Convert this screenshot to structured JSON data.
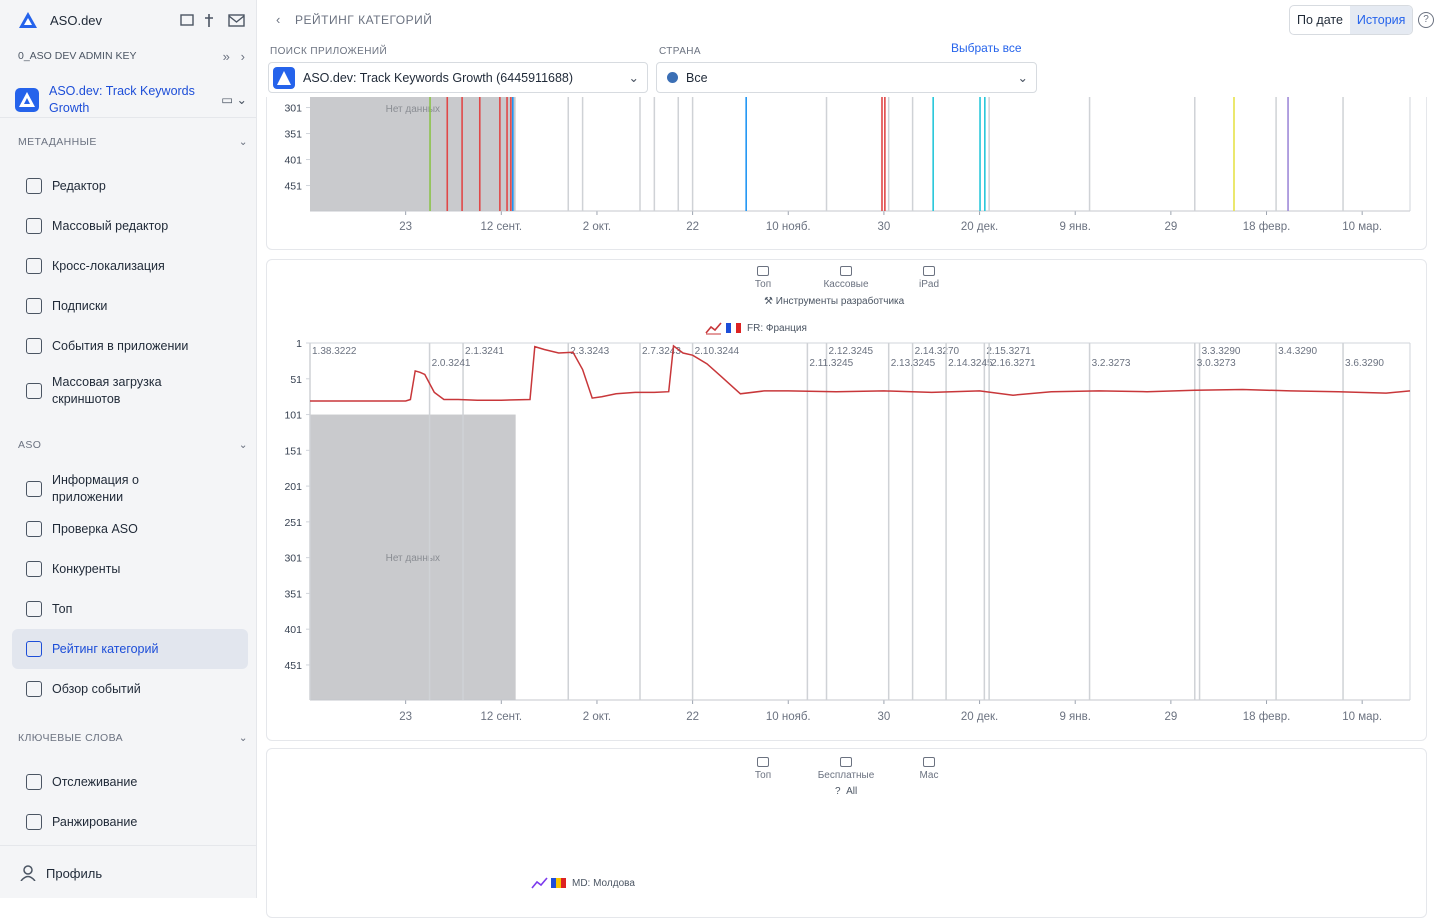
{
  "sidebar": {
    "brand": "ASO.dev",
    "api_key": "0_ASO DEV ADMIN KEY",
    "app_name": "ASO.dev: Track Keywords Growth",
    "sections": [
      {
        "title": "МЕТАДАННЫЕ",
        "items": [
          {
            "label": "Редактор"
          },
          {
            "label": "Массовый редактор"
          },
          {
            "label": "Кросс-локализация"
          },
          {
            "label": "Подписки"
          },
          {
            "label": "События в приложении"
          },
          {
            "label": "Массовая загрузка скриншотов"
          }
        ]
      },
      {
        "title": "ASO",
        "items": [
          {
            "label": "Информация о приложении"
          },
          {
            "label": "Проверка ASO"
          },
          {
            "label": "Конкуренты"
          },
          {
            "label": "Топ"
          },
          {
            "label": "Рейтинг категорий",
            "selected": true
          },
          {
            "label": "Обзор событий"
          }
        ]
      },
      {
        "title": "КЛЮЧЕВЫЕ СЛОВА",
        "items": [
          {
            "label": "Отслеживание"
          },
          {
            "label": "Ранжирование"
          }
        ]
      }
    ],
    "profile": "Профиль"
  },
  "header": {
    "title": "РЕЙТИНГ КАТЕГОРИЙ",
    "toggle": [
      {
        "label": "По дате"
      },
      {
        "label": "История",
        "selected": true
      }
    ]
  },
  "filters": {
    "app_label": "ПОИСК ПРИЛОЖЕНИЙ",
    "app_value": "ASO.dev: Track Keywords Growth (6445911688)",
    "country_label": "СТРАНА",
    "select_all": "Выбрать все",
    "country_value": "Все"
  },
  "panels": [
    {
      "tabs": [
        "Топ",
        "Кассовые",
        "iPad"
      ],
      "subtitle": "Инструменты разработчика"
    },
    {
      "tabs": [
        "Топ",
        "Бесплатные",
        "Mac"
      ],
      "subtitle": "All",
      "legend": "MD: Молдова"
    }
  ],
  "chart_data": [
    {
      "type": "events",
      "no_data": {
        "label": "Нет данных",
        "x": [
          0,
          43
        ]
      },
      "xlim": [
        0,
        230
      ],
      "ylim": [
        500,
        1
      ],
      "xticks": [
        {
          "value": 20,
          "label": "23"
        },
        {
          "value": 40,
          "label": "12 сент."
        },
        {
          "value": 60,
          "label": "2 окт."
        },
        {
          "value": 80,
          "label": "22"
        },
        {
          "value": 100,
          "label": "10 нояб."
        },
        {
          "value": 120,
          "label": "30"
        },
        {
          "value": 140,
          "label": "20 дек."
        },
        {
          "value": 160,
          "label": "9 янв."
        },
        {
          "value": 180,
          "label": "29"
        },
        {
          "value": 200,
          "label": "18 февр."
        },
        {
          "value": 220,
          "label": "10 мар."
        }
      ],
      "yticks": [
        301,
        351,
        401,
        451
      ],
      "release_x": [
        54,
        57,
        69,
        72,
        77,
        80,
        108,
        121,
        126,
        142,
        163,
        185,
        202,
        216
      ],
      "events": [
        {
          "x": 25.1,
          "color": "#8bc34a"
        },
        {
          "x": 28.7,
          "color": "#e04848"
        },
        {
          "x": 31.8,
          "color": "#e04848"
        },
        {
          "x": 35.5,
          "color": "#e04848"
        },
        {
          "x": 39.7,
          "color": "#e04848"
        },
        {
          "x": 41.2,
          "color": "#e04848"
        },
        {
          "x": 42,
          "color": "#e04848"
        },
        {
          "x": 42.4,
          "color": "#2196f3"
        },
        {
          "x": 91.2,
          "color": "#2196f3"
        },
        {
          "x": 119.6,
          "color": "#e04848"
        },
        {
          "x": 120.2,
          "color": "#e04848"
        },
        {
          "x": 130.3,
          "color": "#26c6da"
        },
        {
          "x": 140.1,
          "color": "#26c6da"
        },
        {
          "x": 141.1,
          "color": "#26c6da"
        },
        {
          "x": 193.2,
          "color": "#e6e24a"
        },
        {
          "x": 204.5,
          "color": "#9e8ad8"
        }
      ]
    },
    {
      "type": "line",
      "no_data": {
        "label": "Нет данных",
        "x": [
          0,
          43
        ]
      },
      "xlim": [
        0,
        230
      ],
      "ylim": [
        500,
        1
      ],
      "xticks": [
        {
          "value": 20,
          "label": "23"
        },
        {
          "value": 40,
          "label": "12 сент."
        },
        {
          "value": 60,
          "label": "2 окт."
        },
        {
          "value": 80,
          "label": "22"
        },
        {
          "value": 100,
          "label": "10 нояб."
        },
        {
          "value": 120,
          "label": "30"
        },
        {
          "value": 140,
          "label": "20 дек."
        },
        {
          "value": 160,
          "label": "9 янв."
        },
        {
          "value": 180,
          "label": "29"
        },
        {
          "value": 200,
          "label": "18 февр."
        },
        {
          "value": 220,
          "label": "10 мар."
        }
      ],
      "yticks": [
        1,
        51,
        101,
        151,
        201,
        251,
        301,
        351,
        401,
        451
      ],
      "x": [
        0,
        20,
        21,
        22,
        23,
        24,
        26,
        28,
        31,
        35,
        40,
        46,
        47,
        49,
        52,
        55,
        57,
        59,
        61,
        64,
        68,
        72,
        75,
        76,
        78,
        80,
        83,
        86,
        90,
        95,
        100,
        110,
        120,
        130,
        140,
        147,
        155,
        165,
        175,
        185,
        195,
        205,
        215,
        225,
        230
      ],
      "series": [
        {
          "name": "FR: Франция",
          "color": "#c8373a",
          "values": [
            82,
            82,
            80,
            40,
            42,
            45,
            70,
            80,
            80,
            81,
            81,
            80,
            6,
            10,
            15,
            14,
            38,
            78,
            76,
            72,
            70,
            70,
            69,
            5,
            15,
            18,
            30,
            48,
            72,
            68,
            68,
            69,
            68,
            70,
            68,
            74,
            69,
            68,
            69,
            67,
            66,
            68,
            69,
            71,
            68
          ]
        }
      ],
      "annotations_top": [
        {
          "x": 0,
          "label": "1.38.3222"
        },
        {
          "x": 32,
          "label": "2.1.3241"
        },
        {
          "x": 54,
          "label": "2.3.3243"
        },
        {
          "x": 69,
          "label": "2.7.3243"
        },
        {
          "x": 80,
          "label": "2.10.3244"
        },
        {
          "x": 108,
          "label": "2.12.3245"
        },
        {
          "x": 126,
          "label": "2.14.3270"
        },
        {
          "x": 141,
          "label": "2.15.3271"
        },
        {
          "x": 186,
          "label": "3.3.3290"
        },
        {
          "x": 202,
          "label": "3.4.3290"
        }
      ],
      "annotations_bottom": [
        {
          "x": 25,
          "label": "2.0.3241"
        },
        {
          "x": 104,
          "label": "2.11.3245"
        },
        {
          "x": 121,
          "label": "2.13.3245"
        },
        {
          "x": 133,
          "label": "2.14.3245"
        },
        {
          "x": 142,
          "label": "2.16.3271"
        },
        {
          "x": 163,
          "label": "3.2.3273"
        },
        {
          "x": 185,
          "label": "3.0.3273"
        },
        {
          "x": 216,
          "label": "3.6.3290"
        }
      ]
    }
  ]
}
